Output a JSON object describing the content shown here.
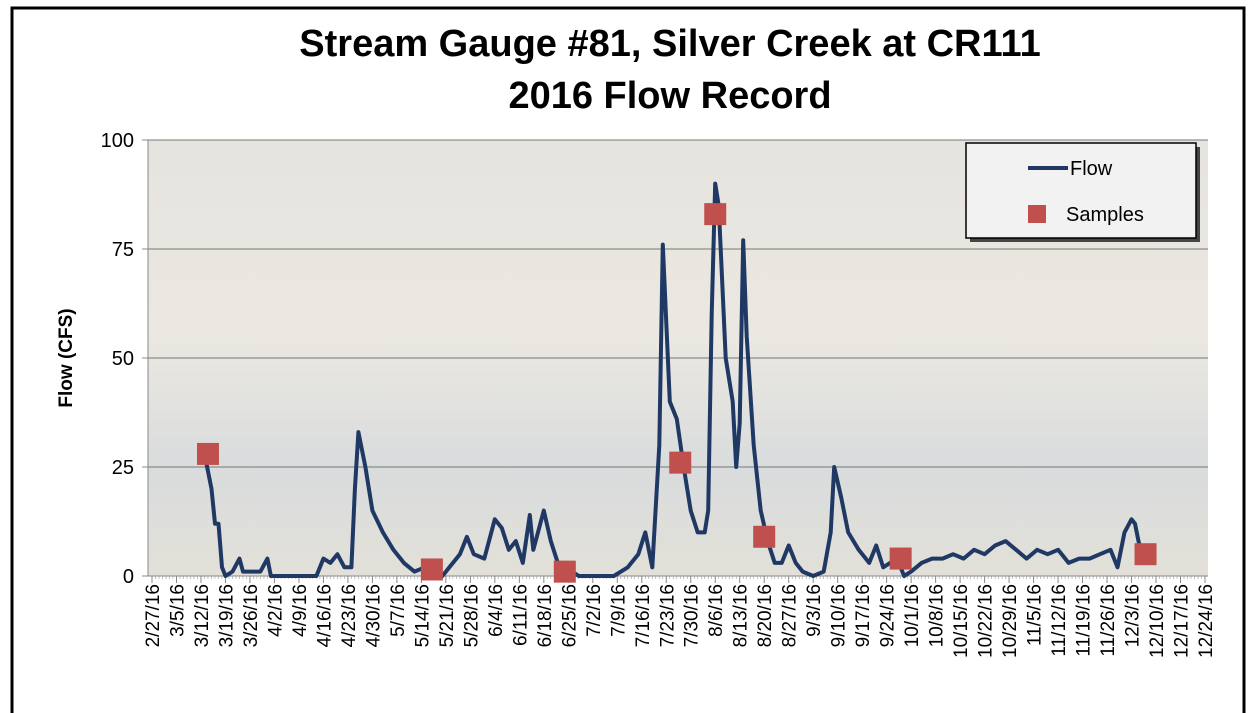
{
  "chart_data": {
    "type": "line",
    "title": "Stream Gauge #81, Silver Creek at CR111",
    "subtitle": "2016 Flow Record",
    "y_label": "Flow (CFS)",
    "ylim": [
      0,
      100
    ],
    "yticks": [
      0,
      25,
      50,
      75,
      100
    ],
    "grid": true,
    "legend": "top-right",
    "xlim": [
      "2/27/16",
      "12/24/16"
    ],
    "xticks": [
      "2/27/16",
      "3/5/16",
      "3/12/16",
      "3/19/16",
      "3/26/16",
      "4/2/16",
      "4/9/16",
      "4/16/16",
      "4/23/16",
      "4/30/16",
      "5/7/16",
      "5/14/16",
      "5/21/16",
      "5/28/16",
      "6/4/16",
      "6/11/16",
      "6/18/16",
      "6/25/16",
      "7/2/16",
      "7/9/16",
      "7/16/16",
      "7/23/16",
      "7/30/16",
      "8/6/16",
      "8/13/16",
      "8/20/16",
      "8/27/16",
      "9/3/16",
      "9/10/16",
      "9/17/16",
      "9/24/16",
      "10/1/16",
      "10/8/16",
      "10/15/16",
      "10/22/16",
      "10/29/16",
      "11/5/16",
      "11/12/16",
      "11/19/16",
      "11/26/16",
      "12/3/16",
      "12/10/16",
      "12/17/16",
      "12/24/16"
    ],
    "series": [
      {
        "name": "Flow",
        "type": "line",
        "color": "#1f3864",
        "x": [
          "3/13/16",
          "3/15/16",
          "3/16/16",
          "3/17/16",
          "3/18/16",
          "3/19/16",
          "3/21/16",
          "3/23/16",
          "3/24/16",
          "3/27/16",
          "3/29/16",
          "3/31/16",
          "4/1/16",
          "4/5/16",
          "4/10/16",
          "4/14/16",
          "4/16/16",
          "4/18/16",
          "4/20/16",
          "4/22/16",
          "4/24/16",
          "4/25/16",
          "4/26/16",
          "4/28/16",
          "4/30/16",
          "5/3/16",
          "5/6/16",
          "5/9/16",
          "5/12/16",
          "5/15/16",
          "5/18/16",
          "5/20/16",
          "5/22/16",
          "5/25/16",
          "5/27/16",
          "5/29/16",
          "6/1/16",
          "6/4/16",
          "6/6/16",
          "6/8/16",
          "6/10/16",
          "6/12/16",
          "6/14/16",
          "6/15/16",
          "6/18/16",
          "6/20/16",
          "6/22/16",
          "6/24/16",
          "6/26/16",
          "6/28/16",
          "7/3/16",
          "7/8/16",
          "7/12/16",
          "7/15/16",
          "7/17/16",
          "7/19/16",
          "7/21/16",
          "7/22/16",
          "7/24/16",
          "7/26/16",
          "7/28/16",
          "7/30/16",
          "8/1/16",
          "8/3/16",
          "8/4/16",
          "8/5/16",
          "8/6/16",
          "8/7/16",
          "8/9/16",
          "8/11/16",
          "8/12/16",
          "8/13/16",
          "8/14/16",
          "8/15/16",
          "8/17/16",
          "8/19/16",
          "8/21/16",
          "8/23/16",
          "8/25/16",
          "8/27/16",
          "8/29/16",
          "8/31/16",
          "9/3/16",
          "9/6/16",
          "9/8/16",
          "9/9/16",
          "9/11/16",
          "9/13/16",
          "9/16/16",
          "9/19/16",
          "9/21/16",
          "9/23/16",
          "9/25/16",
          "9/27/16",
          "9/29/16",
          "10/1/16",
          "10/4/16",
          "10/7/16",
          "10/10/16",
          "10/13/16",
          "10/16/16",
          "10/19/16",
          "10/22/16",
          "10/25/16",
          "10/28/16",
          "10/31/16",
          "11/3/16",
          "11/6/16",
          "11/9/16",
          "11/12/16",
          "11/15/16",
          "11/18/16",
          "11/21/16",
          "11/24/16",
          "11/27/16",
          "11/29/16",
          "12/1/16",
          "12/3/16",
          "12/4/16",
          "12/5/16",
          "12/6/16"
        ],
        "values": [
          28,
          20,
          12,
          12,
          2,
          0,
          1,
          4,
          1,
          1,
          1,
          4,
          0,
          0,
          0,
          0,
          4,
          3,
          5,
          2,
          2,
          20,
          33,
          25,
          15,
          10,
          6,
          3,
          1,
          2,
          1,
          0,
          2,
          5,
          9,
          5,
          4,
          13,
          11,
          6,
          8,
          3,
          14,
          6,
          15,
          8,
          3,
          3,
          1,
          0,
          0,
          0,
          2,
          5,
          10,
          2,
          30,
          76,
          40,
          36,
          25,
          15,
          10,
          10,
          15,
          60,
          90,
          85,
          50,
          40,
          25,
          35,
          77,
          55,
          30,
          15,
          8,
          3,
          3,
          7,
          3,
          1,
          0,
          1,
          10,
          25,
          18,
          10,
          6,
          3,
          7,
          2,
          3,
          4,
          0,
          1,
          3,
          4,
          4,
          5,
          4,
          6,
          5,
          7,
          8,
          6,
          4,
          6,
          5,
          6,
          3,
          4,
          4,
          5,
          6,
          2,
          10,
          13,
          12,
          8,
          5
        ]
      },
      {
        "name": "Samples",
        "type": "scatter",
        "color": "#c0504d",
        "x": [
          "3/14/16",
          "5/17/16",
          "6/24/16",
          "7/27/16",
          "8/6/16",
          "8/20/16",
          "9/28/16",
          "12/7/16"
        ],
        "values": [
          28,
          1.5,
          1,
          26,
          83,
          9,
          4,
          5
        ]
      }
    ]
  }
}
